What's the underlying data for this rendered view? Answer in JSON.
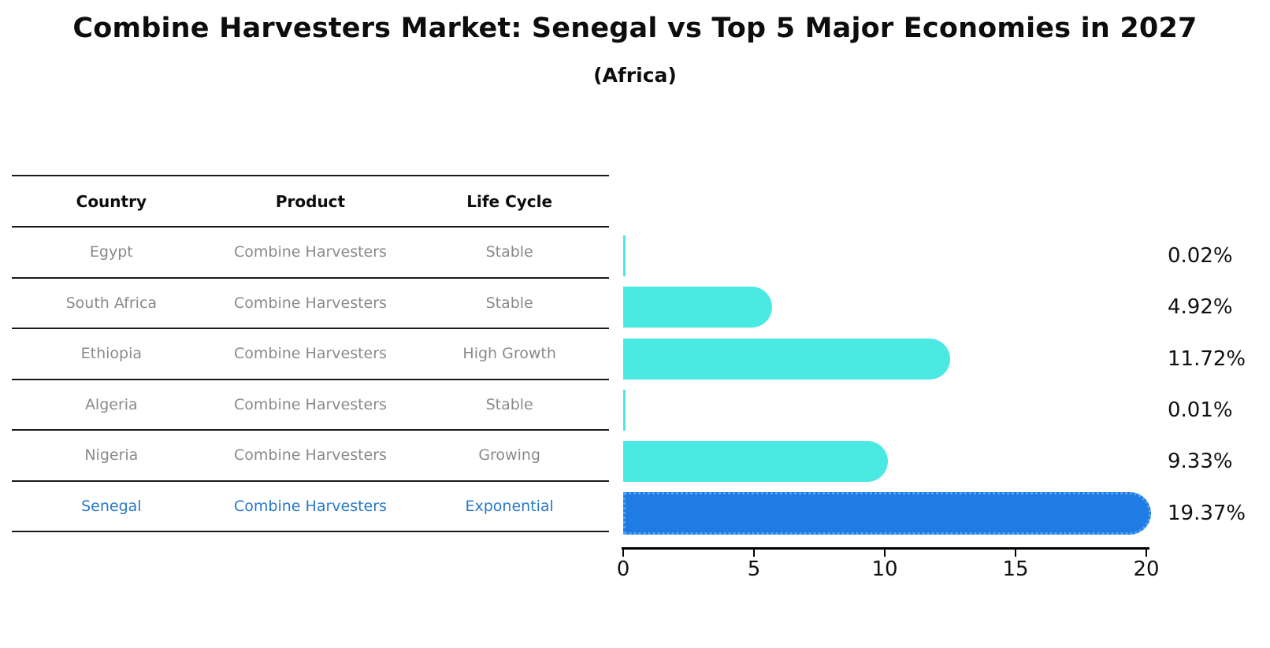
{
  "title": "Combine Harvesters Market: Senegal vs Top 5 Major Economies in 2027",
  "subtitle": "(Africa)",
  "table": {
    "columns": [
      "Country",
      "Product",
      "Life Cycle"
    ],
    "rows": [
      {
        "country": "Egypt",
        "product": "Combine Harvesters",
        "life_cycle": "Stable",
        "highlight": false
      },
      {
        "country": "South Africa",
        "product": "Combine Harvesters",
        "life_cycle": "Stable",
        "highlight": false
      },
      {
        "country": "Ethiopia",
        "product": "Combine Harvesters",
        "life_cycle": "High Growth",
        "highlight": false
      },
      {
        "country": "Algeria",
        "product": "Combine Harvesters",
        "life_cycle": "Stable",
        "highlight": false
      },
      {
        "country": "Nigeria",
        "product": "Combine Harvesters",
        "life_cycle": "Growing",
        "highlight": false
      },
      {
        "country": "Senegal",
        "product": "Combine Harvesters",
        "life_cycle": "Exponential",
        "highlight": true
      }
    ]
  },
  "chart_data": {
    "type": "bar",
    "orientation": "horizontal",
    "title": "Combine Harvesters Market: Senegal vs Top 5 Major Economies in 2027",
    "subtitle": "(Africa)",
    "categories": [
      "Egypt",
      "South Africa",
      "Ethiopia",
      "Algeria",
      "Nigeria",
      "Senegal"
    ],
    "values": [
      0.02,
      4.92,
      11.72,
      0.01,
      9.33,
      19.37
    ],
    "value_labels": [
      "0.02%",
      "4.92%",
      "11.72%",
      "0.01%",
      "9.33%",
      "19.37%"
    ],
    "unit": "%",
    "xlabel": "",
    "ylabel": "",
    "xlim": [
      0,
      20
    ],
    "xticks": [
      0,
      5,
      10,
      15,
      20
    ],
    "grid": false,
    "legend": false,
    "highlight_category": "Senegal",
    "colors": {
      "bar_default": "#4ae9e2",
      "bar_highlight": "#1f7ce5",
      "bar_highlight_border": "#55a3f0",
      "label_text": "#111111",
      "table_text_muted": "#8a8a8a",
      "table_text_highlight": "#2979c8"
    }
  }
}
